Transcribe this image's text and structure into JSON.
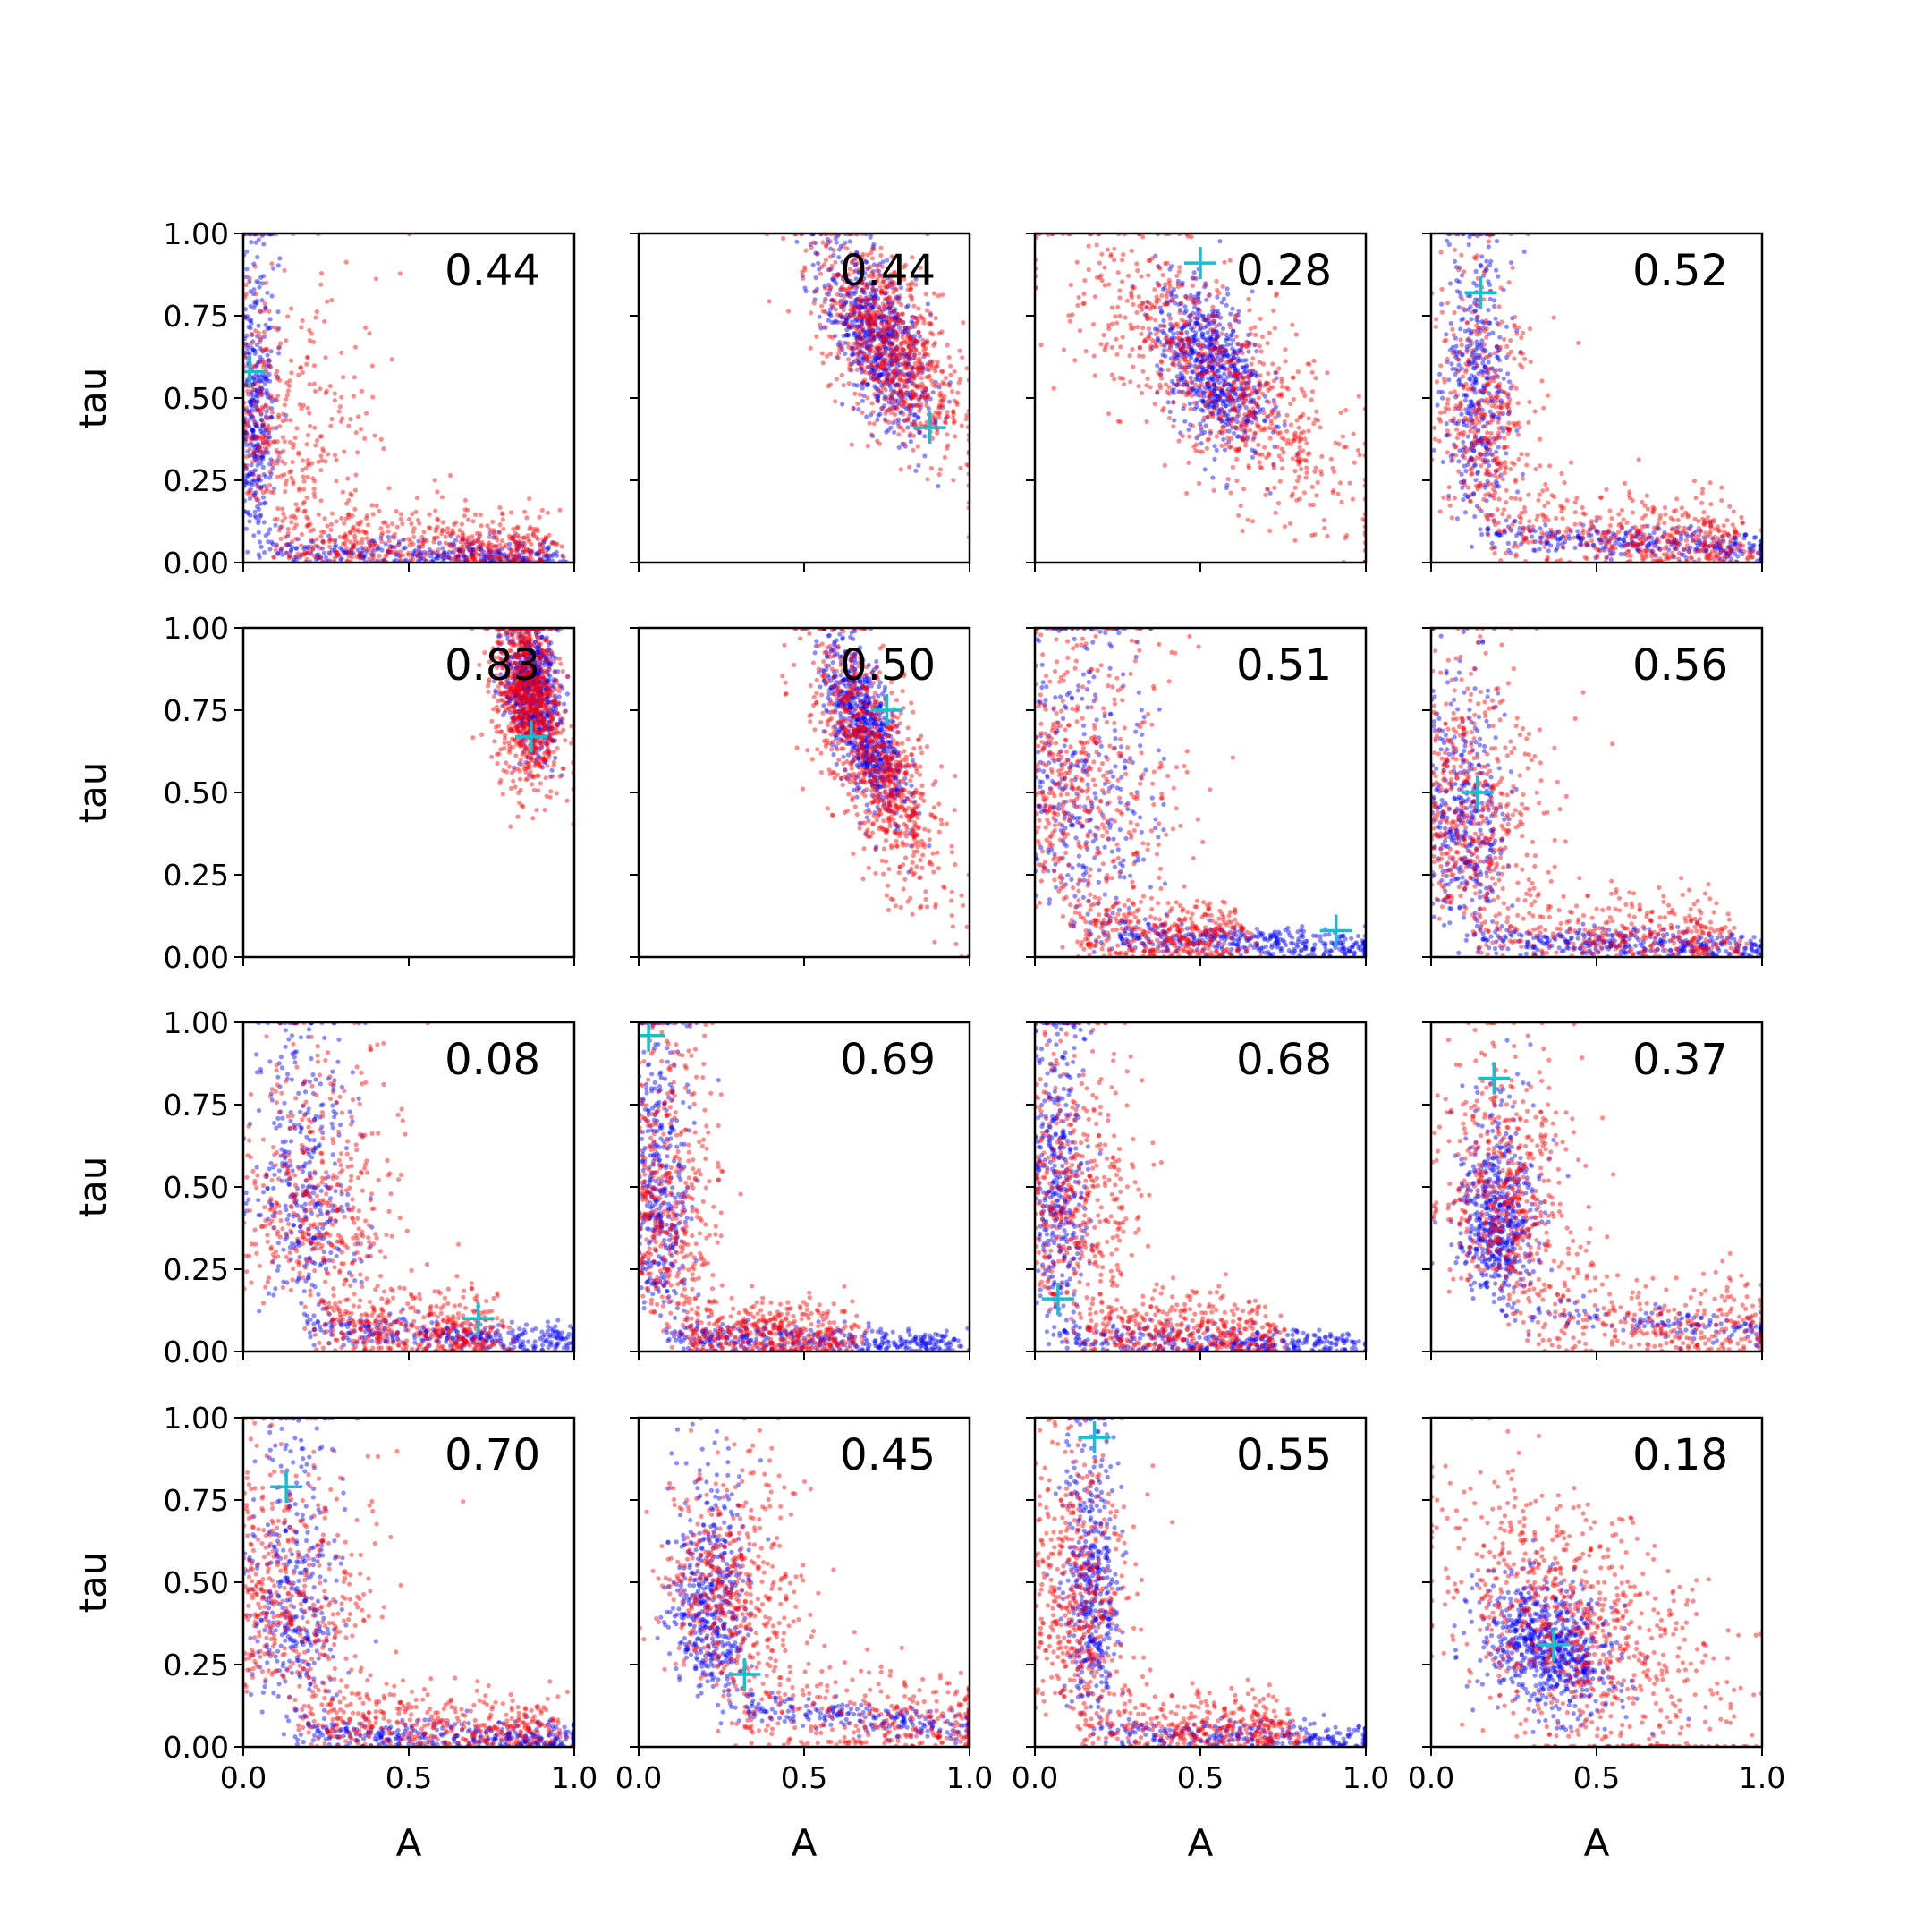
{
  "chart_data": {
    "type": "scatter",
    "layout": {
      "rows": 4,
      "cols": 4
    },
    "xlabel": "A",
    "ylabel": "tau",
    "xlim": [
      0,
      1
    ],
    "ylim": [
      0,
      1
    ],
    "x_ticks": [
      "0.0",
      "0.5",
      "1.0"
    ],
    "y_ticks": [
      "0.00",
      "0.25",
      "0.50",
      "0.75",
      "1.00"
    ],
    "x_tick_values": [
      0,
      0.5,
      1
    ],
    "y_tick_values": [
      0,
      0.25,
      0.5,
      0.75,
      1
    ],
    "colors": {
      "blue": "#0000ff",
      "red": "#ff0000",
      "marker": "#17becf"
    },
    "panels": [
      {
        "annotation": "0.44",
        "true_value": [
          0.02,
          0.58
        ]
      },
      {
        "annotation": "0.44",
        "true_value": [
          0.88,
          0.41
        ]
      },
      {
        "annotation": "0.28",
        "true_value": [
          0.5,
          0.91
        ]
      },
      {
        "annotation": "0.52",
        "true_value": [
          0.15,
          0.82
        ]
      },
      {
        "annotation": "0.83",
        "true_value": [
          0.87,
          0.67
        ]
      },
      {
        "annotation": "0.50",
        "true_value": [
          0.75,
          0.75
        ]
      },
      {
        "annotation": "0.51",
        "true_value": [
          0.91,
          0.08
        ]
      },
      {
        "annotation": "0.56",
        "true_value": [
          0.14,
          0.5
        ]
      },
      {
        "annotation": "0.08",
        "true_value": [
          0.71,
          0.1
        ]
      },
      {
        "annotation": "0.69",
        "true_value": [
          0.03,
          0.96
        ]
      },
      {
        "annotation": "0.68",
        "true_value": [
          0.07,
          0.16
        ]
      },
      {
        "annotation": "0.37",
        "true_value": [
          0.19,
          0.83
        ]
      },
      {
        "annotation": "0.70",
        "true_value": [
          0.13,
          0.79
        ]
      },
      {
        "annotation": "0.45",
        "true_value": [
          0.32,
          0.22
        ]
      },
      {
        "annotation": "0.55",
        "true_value": [
          0.18,
          0.94
        ]
      },
      {
        "annotation": "0.18",
        "true_value": [
          0.37,
          0.31
        ]
      }
    ]
  }
}
